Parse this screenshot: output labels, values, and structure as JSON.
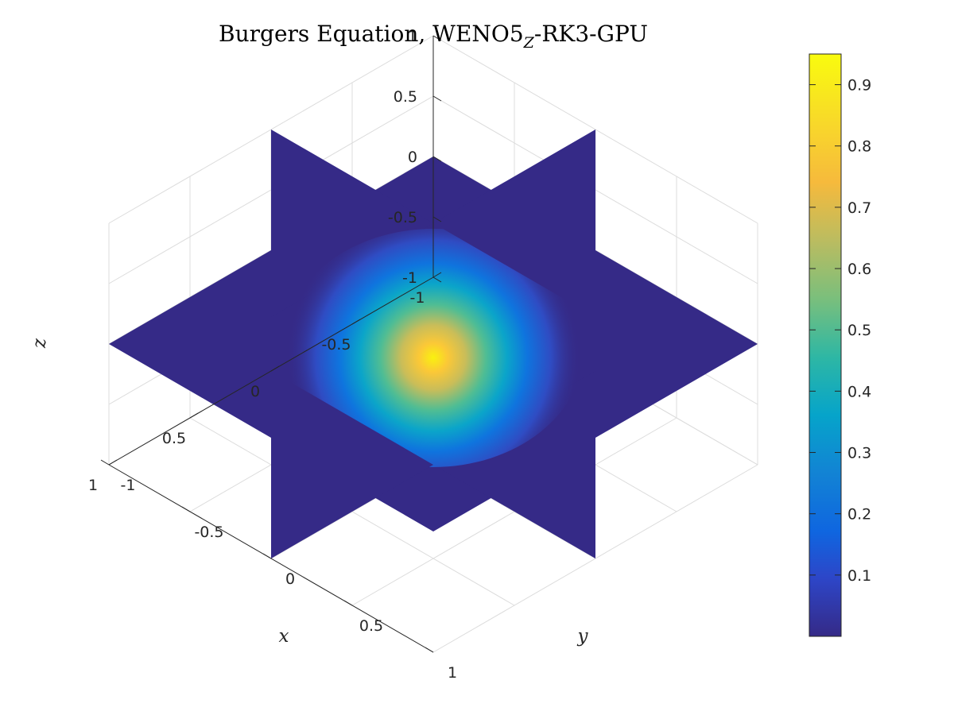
{
  "chart_data": {
    "type": "heatmap",
    "plot_style": "3d orthogonal slice planes",
    "title_main": "Burgers Equation, WENO5",
    "title_sub": "Z",
    "title_end": "-RK3-GPU",
    "xlabel": "x",
    "ylabel": "y",
    "zlabel": "z",
    "xlim": [
      -1,
      1
    ],
    "ylim": [
      -1,
      1
    ],
    "zlim": [
      -1,
      1
    ],
    "x_ticks": [
      "-1",
      "-0.5",
      "0",
      "0.5",
      "1"
    ],
    "y_ticks": [
      "-1",
      "-0.5",
      "0",
      "0.5",
      "1"
    ],
    "z_ticks": [
      "-1",
      "-0.5",
      "0",
      "0.5",
      "1"
    ],
    "grid": true,
    "colormap": "parula",
    "background_value": 0.0,
    "peak_value": 0.95,
    "colorbar": {
      "range": [
        0,
        0.95
      ],
      "ticks": [
        "0.1",
        "0.2",
        "0.3",
        "0.4",
        "0.5",
        "0.6",
        "0.7",
        "0.8",
        "0.9"
      ]
    }
  },
  "colors": {
    "background": "#ffffff",
    "axis": "#262626",
    "grid": "#dcdcdc",
    "plane_fill": "#352a87"
  }
}
